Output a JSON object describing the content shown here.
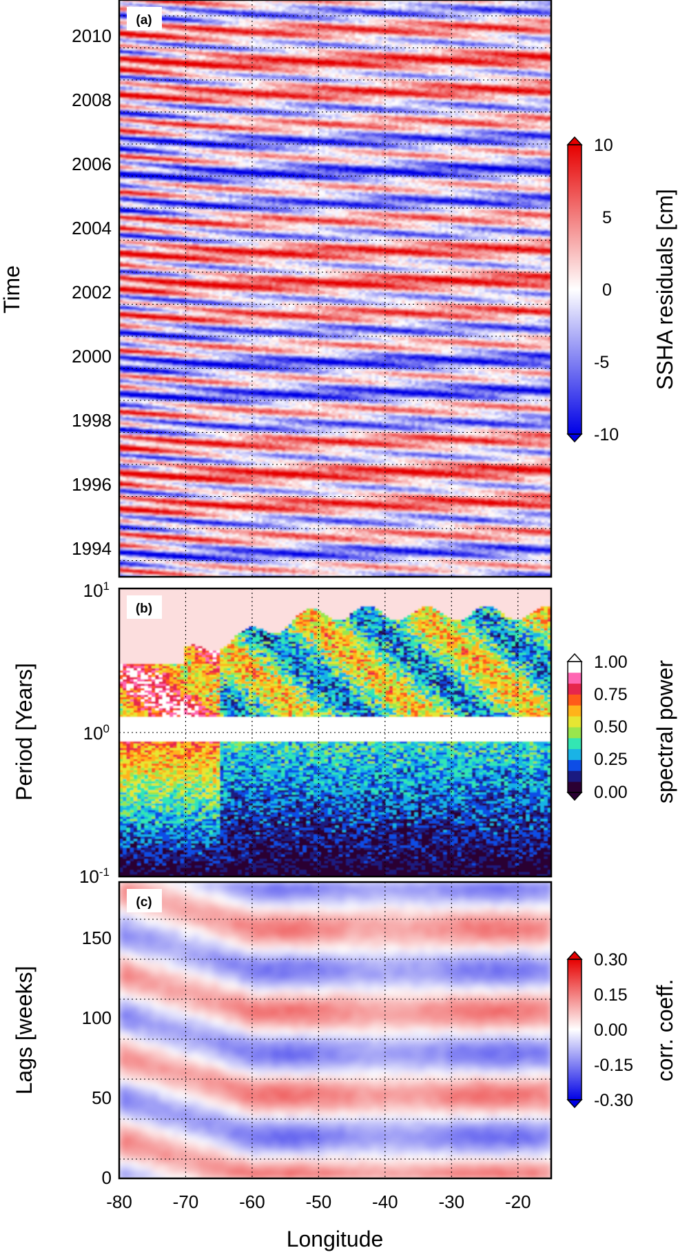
{
  "figure": {
    "x_axis_label": "Longitude",
    "x_ticks": [
      -80,
      -70,
      -60,
      -50,
      -40,
      -30,
      -20
    ],
    "x_range": [
      -80,
      -15
    ]
  },
  "colors": {
    "diverging": [
      "#0000e6",
      "#ffffff",
      "#e60000"
    ],
    "rainbow": [
      "#2b0033",
      "#1a1a80",
      "#0d4de6",
      "#19b3e6",
      "#33e6b3",
      "#99e64d",
      "#e6e633",
      "#ffb31a",
      "#ff5a1a",
      "#e6264d",
      "#ff66b3",
      "#ffffff"
    ],
    "background_b": "#fcdede"
  },
  "panels": [
    {
      "label": "(a)",
      "ylabel": "Time",
      "yticks": [
        "1994",
        "1996",
        "1998",
        "2000",
        "2002",
        "2004",
        "2006",
        "2008",
        "2010"
      ],
      "cbar_label": "SSHA residuals [cm]",
      "cbar_ticks": [
        "10",
        "5",
        "0",
        "-5",
        "-10"
      ]
    },
    {
      "label": "(b)",
      "ylabel": "Period [Years]",
      "ytick_top": {
        "base": "10",
        "exp": "1"
      },
      "ytick_mid": {
        "base": "10",
        "exp": "0"
      },
      "ytick_bot": {
        "base": "10",
        "exp": "-1"
      },
      "cbar_label": "spectral power",
      "cbar_ticks": [
        "1.00",
        "0.75",
        "0.50",
        "0.25",
        "0.00"
      ]
    },
    {
      "label": "(c)",
      "ylabel": "Lags [weeks]",
      "yticks": [
        "0",
        "50",
        "100",
        "150"
      ],
      "cbar_label": "corr. coeff.",
      "cbar_ticks": [
        "0.30",
        "0.15",
        "0.00",
        "-0.15",
        "-0.30"
      ]
    }
  ],
  "chart_data": [
    {
      "type": "heatmap",
      "title": "",
      "panel": "(a)",
      "xlabel": "Longitude",
      "ylabel": "Time",
      "xlim": [
        -80,
        -15
      ],
      "ylim": [
        1992.8,
        2011
      ],
      "colorbar": {
        "label": "SSHA residuals [cm]",
        "range": [
          -10,
          10
        ],
        "ticks": [
          -10,
          -5,
          0,
          5,
          10
        ],
        "colormap": "blue-white-red"
      },
      "grid": true,
      "features": "Alternating positive/negative SSHA residual bands drifting westward; strong annual cycle near eastern side, large-amplitude westward-propagating anomalies west of -70."
    },
    {
      "type": "heatmap",
      "title": "",
      "panel": "(b)",
      "xlabel": "Longitude",
      "ylabel": "Period [Years]",
      "xlim": [
        -80,
        -15
      ],
      "ylim": [
        0.1,
        10
      ],
      "yscale": "log",
      "colorbar": {
        "label": "spectral power",
        "range": [
          0,
          1
        ],
        "ticks": [
          0,
          0.25,
          0.5,
          0.75,
          1.0
        ],
        "colormap": "rainbow"
      },
      "grid": true,
      "features": "Saturated power near 1-year period across all longitudes; broad interannual power 1.2-6 years; low power at periods below 0.2 years."
    },
    {
      "type": "heatmap",
      "title": "",
      "panel": "(c)",
      "xlabel": "Longitude",
      "ylabel": "Lags [weeks]",
      "xlim": [
        -80,
        -15
      ],
      "ylim": [
        0,
        185
      ],
      "colorbar": {
        "label": "corr. coeff.",
        "range": [
          -0.3,
          0.3
        ],
        "ticks": [
          -0.3,
          -0.15,
          0,
          0.15,
          0.3
        ],
        "colormap": "blue-white-red"
      },
      "grid": true,
      "features": "Alternating correlation bands with roughly 52-week periodicity; positive near 0, 60-70 and 115 weeks lag; negative near 40, 90 and 140 weeks lag."
    }
  ]
}
